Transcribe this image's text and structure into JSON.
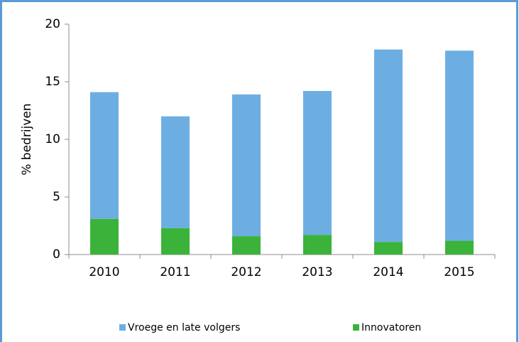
{
  "chart_data": {
    "type": "stacked_bar",
    "y_label": "% bedrijven",
    "categories": [
      "2010",
      "2011",
      "2012",
      "2013",
      "2014",
      "2015"
    ],
    "series": [
      {
        "name": "Vroege en late volgers",
        "color": "#6caee2",
        "values": [
          11.0,
          9.7,
          12.3,
          12.5,
          16.7,
          16.5
        ]
      },
      {
        "name": "Innovatoren",
        "color": "#3bb33b",
        "values": [
          3.1,
          2.3,
          1.6,
          1.7,
          1.1,
          1.2
        ]
      }
    ],
    "ylim": [
      0,
      20
    ],
    "yticks": [
      0,
      5,
      10,
      15,
      20
    ],
    "grid": false,
    "legend": "bottom"
  }
}
